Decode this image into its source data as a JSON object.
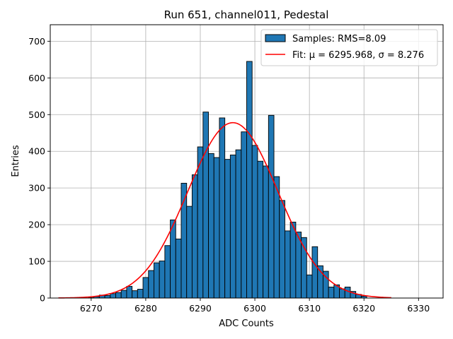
{
  "chart_data": {
    "type": "bar",
    "title": "Run 651, channel011, Pedestal",
    "xlabel": "ADC Counts",
    "ylabel": "Entries",
    "xlim": [
      6262.5,
      6334.5
    ],
    "ylim": [
      0,
      745
    ],
    "xticks": [
      6270,
      6280,
      6290,
      6300,
      6310,
      6320,
      6330
    ],
    "yticks": [
      0,
      100,
      200,
      300,
      400,
      500,
      600,
      700
    ],
    "grid": true,
    "legend_position": "top-right",
    "bin_width": 1,
    "bins": [
      6270,
      6271,
      6272,
      6273,
      6274,
      6275,
      6276,
      6277,
      6278,
      6279,
      6280,
      6281,
      6282,
      6283,
      6284,
      6285,
      6286,
      6287,
      6288,
      6289,
      6290,
      6291,
      6292,
      6293,
      6294,
      6295,
      6296,
      6297,
      6298,
      6299,
      6300,
      6301,
      6302,
      6303,
      6304,
      6305,
      6306,
      6307,
      6308,
      6309,
      6310,
      6311,
      6312,
      6313,
      6314,
      6315,
      6316,
      6317,
      6318,
      6319,
      6320
    ],
    "counts": [
      1,
      4,
      8,
      7,
      12,
      15,
      21,
      32,
      20,
      24,
      56,
      75,
      96,
      101,
      143,
      213,
      161,
      313,
      250,
      336,
      412,
      507,
      394,
      383,
      491,
      378,
      390,
      404,
      453,
      645,
      416,
      373,
      360,
      498,
      331,
      266,
      183,
      207,
      180,
      165,
      63,
      140,
      88,
      73,
      30,
      36,
      25,
      30,
      18,
      10,
      5
    ],
    "series": [
      {
        "name": "Samples: RMS=8.09",
        "kind": "histogram",
        "color": "#1f77b4",
        "edge_color": "#000000"
      },
      {
        "name": "Fit: μ = 6295.968, σ = 8.276",
        "kind": "gaussian",
        "color": "#ff0000",
        "mu": 6295.968,
        "sigma": 8.276,
        "amplitude": 478,
        "x_range": [
          6264,
          6325
        ]
      }
    ]
  }
}
